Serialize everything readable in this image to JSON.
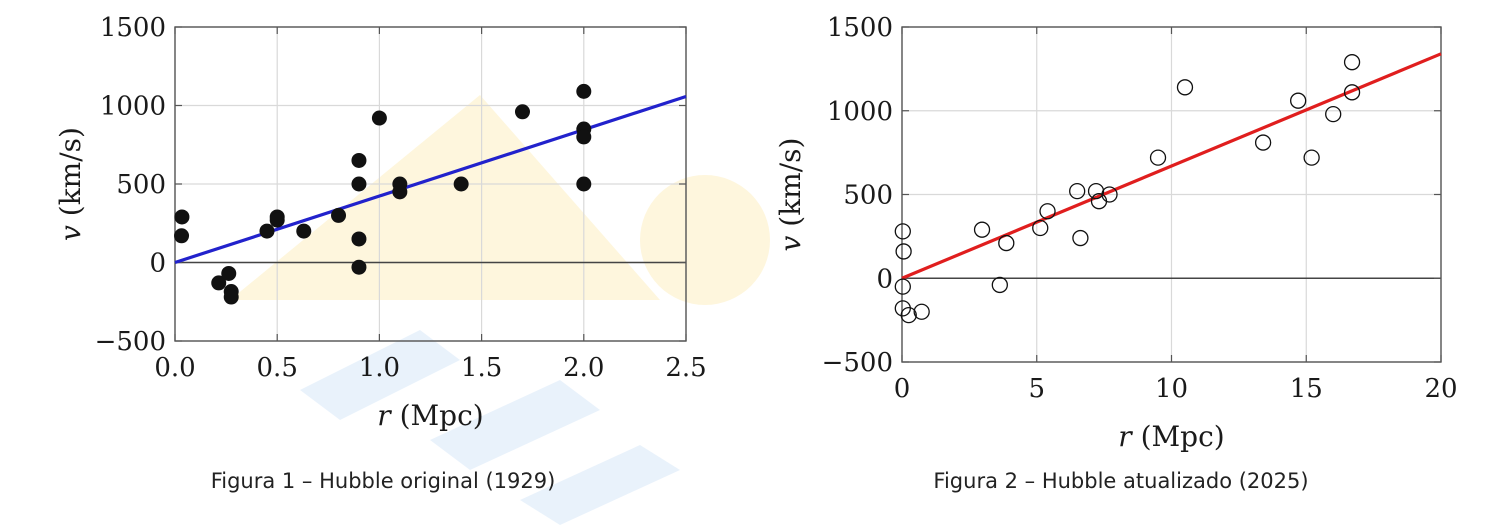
{
  "chart_data": [
    {
      "type": "scatter",
      "caption": "Figura 1 – Hubble original (1929)",
      "xlabel_var": "r",
      "xlabel_unit": "(Mpc)",
      "ylabel_var": "v",
      "ylabel_unit": "(km/s)",
      "xlim": [
        0,
        2.5
      ],
      "ylim": [
        -500,
        1500
      ],
      "xticks": [
        0.0,
        0.5,
        1.0,
        1.5,
        2.0,
        2.5
      ],
      "xtick_labels": [
        "0.0",
        "0.5",
        "1.0",
        "1.5",
        "2.0",
        "2.5"
      ],
      "yticks": [
        -500,
        0,
        500,
        1000,
        1500
      ],
      "ytick_labels": [
        "−500",
        "0",
        "500",
        "1000",
        "1500"
      ],
      "grid": true,
      "marker": "filled",
      "marker_color": "#111111",
      "fit_color": "#2222cc",
      "fit_line": {
        "slope": 423,
        "intercept": 0
      },
      "points": [
        [
          0.032,
          170
        ],
        [
          0.034,
          290
        ],
        [
          0.214,
          -130
        ],
        [
          0.263,
          -70
        ],
        [
          0.275,
          -185
        ],
        [
          0.275,
          -220
        ],
        [
          0.45,
          200
        ],
        [
          0.5,
          290
        ],
        [
          0.5,
          270
        ],
        [
          0.63,
          200
        ],
        [
          0.8,
          300
        ],
        [
          0.9,
          -30
        ],
        [
          0.9,
          650
        ],
        [
          0.9,
          150
        ],
        [
          0.9,
          500
        ],
        [
          1.0,
          920
        ],
        [
          1.1,
          450
        ],
        [
          1.1,
          500
        ],
        [
          1.4,
          500
        ],
        [
          1.7,
          960
        ],
        [
          2.0,
          500
        ],
        [
          2.0,
          850
        ],
        [
          2.0,
          800
        ],
        [
          2.0,
          1090
        ]
      ]
    },
    {
      "type": "scatter",
      "caption": "Figura 2 – Hubble atualizado (2025)",
      "xlabel_var": "r",
      "xlabel_unit": "(Mpc)",
      "ylabel_var": "v",
      "ylabel_unit": "(km/s)",
      "xlim": [
        0,
        20
      ],
      "ylim": [
        -500,
        1500
      ],
      "xticks": [
        0,
        5,
        10,
        15,
        20
      ],
      "xtick_labels": [
        "0",
        "5",
        "10",
        "15",
        "20"
      ],
      "yticks": [
        -500,
        0,
        500,
        1000,
        1500
      ],
      "ytick_labels": [
        "−500",
        "0",
        "500",
        "1000",
        "1500"
      ],
      "grid": true,
      "marker": "open",
      "marker_color": "#111111",
      "fit_color": "#e01e1e",
      "fit_line": {
        "slope": 67,
        "intercept": 0
      },
      "points": [
        [
          0.03,
          280
        ],
        [
          0.06,
          160
        ],
        [
          0.03,
          -50
        ],
        [
          0.03,
          -180
        ],
        [
          0.25,
          -220
        ],
        [
          0.73,
          -200
        ],
        [
          2.97,
          290
        ],
        [
          3.63,
          -40
        ],
        [
          3.87,
          210
        ],
        [
          5.13,
          300
        ],
        [
          5.4,
          400
        ],
        [
          6.5,
          520
        ],
        [
          6.62,
          240
        ],
        [
          7.2,
          520
        ],
        [
          7.31,
          460
        ],
        [
          7.7,
          500
        ],
        [
          9.5,
          720
        ],
        [
          10.5,
          1140
        ],
        [
          13.4,
          810
        ],
        [
          14.7,
          1060
        ],
        [
          15.2,
          720
        ],
        [
          16.0,
          980
        ],
        [
          16.7,
          1110
        ],
        [
          16.7,
          1290
        ]
      ]
    }
  ]
}
